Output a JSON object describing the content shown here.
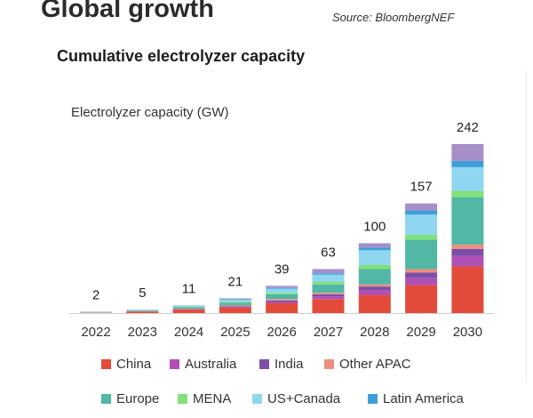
{
  "header": {
    "title": "Global growth",
    "source": "Source: BloombergNEF"
  },
  "chart_data": {
    "type": "bar",
    "stacked": true,
    "title": "Cumulative electrolyzer capacity",
    "ylabel": "Electrolyzer capacity (GW)",
    "xlabel": "",
    "ylim": [
      0,
      242
    ],
    "grid": false,
    "legend_position": "bottom",
    "categories": [
      "2022",
      "2023",
      "2024",
      "2025",
      "2026",
      "2027",
      "2028",
      "2029",
      "2030"
    ],
    "totals": [
      2,
      5,
      11,
      21,
      39,
      63,
      100,
      157,
      242
    ],
    "series": [
      {
        "name": "China",
        "color": "#e24b3a",
        "values": [
          0.3,
          2,
          5,
          8,
          14,
          20,
          26,
          40,
          67
        ]
      },
      {
        "name": "Australia",
        "color": "#b04fb4",
        "values": [
          0.1,
          0.3,
          0.6,
          1,
          2,
          4,
          7,
          10,
          15
        ]
      },
      {
        "name": "India",
        "color": "#7d4fa8",
        "values": [
          0.1,
          0.2,
          0.4,
          1,
          2,
          3,
          5,
          8,
          10
        ]
      },
      {
        "name": "Other APAC",
        "color": "#ec8f7f",
        "values": [
          0.1,
          0.2,
          0.4,
          1,
          2,
          2,
          3,
          5,
          6
        ]
      },
      {
        "name": "Europe",
        "color": "#52b7a4",
        "values": [
          0.3,
          0.8,
          2,
          4,
          7,
          12,
          22,
          42,
          68
        ]
      },
      {
        "name": "MENA",
        "color": "#80e07a",
        "values": [
          0.1,
          0.3,
          0.5,
          1,
          2,
          4,
          6,
          7,
          9
        ]
      },
      {
        "name": "US+Canada",
        "color": "#8fd6f0",
        "values": [
          0.6,
          1,
          1.5,
          3,
          6,
          10,
          21,
          29,
          34
        ]
      },
      {
        "name": "Latin America",
        "color": "#3d9fd8",
        "values": [
          0.2,
          0.2,
          0.3,
          1,
          1,
          2,
          4,
          6,
          9
        ]
      },
      {
        "name": "",
        "color": "#a68fc8",
        "values": [
          0.2,
          0,
          0.3,
          1,
          3,
          6,
          6,
          10,
          24
        ]
      }
    ]
  },
  "legend": {
    "row1": [
      "China",
      "Australia",
      "India",
      "Other APAC"
    ],
    "row2": [
      "Europe",
      "MENA",
      "US+Canada",
      "Latin America"
    ]
  }
}
